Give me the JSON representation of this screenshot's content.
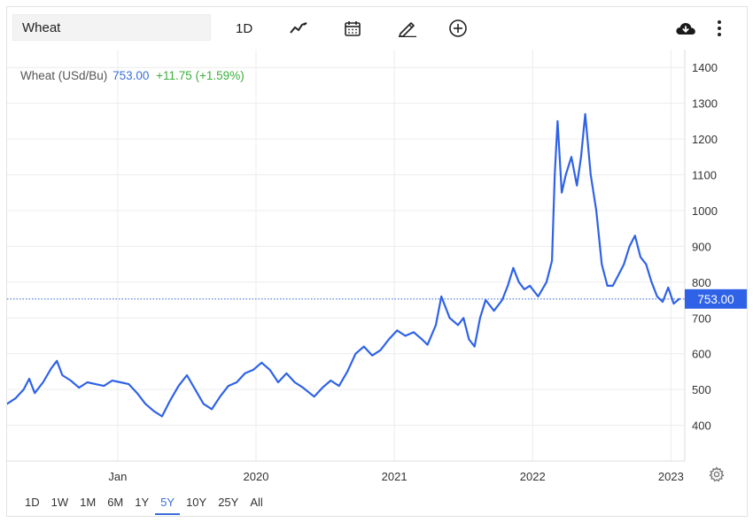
{
  "toolbar": {
    "symbol": "Wheat",
    "interval_label": "1D",
    "icons": [
      "line-chart-icon",
      "calendar-icon",
      "pencil-icon",
      "plus-circle-icon",
      "cloud-download-icon",
      "more-vertical-icon"
    ]
  },
  "legend": {
    "name": "Wheat (USd/Bu)",
    "price": "753.00",
    "change": "+11.75 (+1.59%)"
  },
  "price_tag": "753.00",
  "ranges": {
    "items": [
      "1D",
      "1W",
      "1M",
      "6M",
      "1Y",
      "5Y",
      "10Y",
      "25Y",
      "All"
    ],
    "active": "5Y"
  },
  "colors": {
    "line": "#2f62e6",
    "tag": "#2f62e6",
    "grid": "#ececec",
    "up": "#3bae3b"
  },
  "chart_data": {
    "type": "line",
    "series": [
      {
        "values": [
          [
            2018.2,
            460
          ],
          [
            2018.26,
            475
          ],
          [
            2018.32,
            500
          ],
          [
            2018.36,
            530
          ],
          [
            2018.4,
            490
          ],
          [
            2018.46,
            520
          ],
          [
            2018.52,
            560
          ],
          [
            2018.56,
            580
          ],
          [
            2018.6,
            540
          ],
          [
            2018.66,
            525
          ],
          [
            2018.72,
            505
          ],
          [
            2018.78,
            520
          ],
          [
            2018.84,
            515
          ],
          [
            2018.9,
            510
          ],
          [
            2018.96,
            525
          ],
          [
            2019.02,
            520
          ],
          [
            2019.08,
            515
          ],
          [
            2019.14,
            490
          ],
          [
            2019.2,
            460
          ],
          [
            2019.26,
            440
          ],
          [
            2019.32,
            425
          ],
          [
            2019.38,
            470
          ],
          [
            2019.44,
            510
          ],
          [
            2019.5,
            540
          ],
          [
            2019.56,
            500
          ],
          [
            2019.62,
            460
          ],
          [
            2019.68,
            445
          ],
          [
            2019.74,
            480
          ],
          [
            2019.8,
            510
          ],
          [
            2019.86,
            520
          ],
          [
            2019.92,
            545
          ],
          [
            2019.98,
            555
          ],
          [
            2020.04,
            575
          ],
          [
            2020.1,
            555
          ],
          [
            2020.16,
            520
          ],
          [
            2020.22,
            545
          ],
          [
            2020.28,
            520
          ],
          [
            2020.34,
            505
          ],
          [
            2020.42,
            480
          ],
          [
            2020.48,
            505
          ],
          [
            2020.54,
            525
          ],
          [
            2020.6,
            510
          ],
          [
            2020.66,
            550
          ],
          [
            2020.72,
            600
          ],
          [
            2020.78,
            620
          ],
          [
            2020.84,
            595
          ],
          [
            2020.9,
            610
          ],
          [
            2020.96,
            640
          ],
          [
            2021.02,
            665
          ],
          [
            2021.08,
            650
          ],
          [
            2021.14,
            660
          ],
          [
            2021.2,
            640
          ],
          [
            2021.24,
            625
          ],
          [
            2021.3,
            680
          ],
          [
            2021.34,
            760
          ],
          [
            2021.4,
            700
          ],
          [
            2021.46,
            680
          ],
          [
            2021.5,
            700
          ],
          [
            2021.54,
            640
          ],
          [
            2021.58,
            620
          ],
          [
            2021.62,
            700
          ],
          [
            2021.66,
            750
          ],
          [
            2021.72,
            720
          ],
          [
            2021.78,
            750
          ],
          [
            2021.82,
            790
          ],
          [
            2021.86,
            840
          ],
          [
            2021.9,
            800
          ],
          [
            2021.94,
            780
          ],
          [
            2021.98,
            790
          ],
          [
            2022.04,
            760
          ],
          [
            2022.1,
            800
          ],
          [
            2022.14,
            860
          ],
          [
            2022.16,
            1100
          ],
          [
            2022.18,
            1250
          ],
          [
            2022.21,
            1050
          ],
          [
            2022.24,
            1100
          ],
          [
            2022.28,
            1150
          ],
          [
            2022.32,
            1070
          ],
          [
            2022.35,
            1150
          ],
          [
            2022.38,
            1270
          ],
          [
            2022.42,
            1100
          ],
          [
            2022.46,
            1000
          ],
          [
            2022.5,
            850
          ],
          [
            2022.54,
            790
          ],
          [
            2022.58,
            790
          ],
          [
            2022.62,
            820
          ],
          [
            2022.66,
            850
          ],
          [
            2022.7,
            900
          ],
          [
            2022.74,
            930
          ],
          [
            2022.78,
            870
          ],
          [
            2022.82,
            850
          ],
          [
            2022.86,
            800
          ],
          [
            2022.9,
            760
          ],
          [
            2022.94,
            745
          ],
          [
            2022.98,
            785
          ],
          [
            2023.02,
            740
          ],
          [
            2023.06,
            753
          ]
        ]
      }
    ],
    "x_ticks": [
      {
        "value": 2019.0,
        "label": "Jan"
      },
      {
        "value": 2020.0,
        "label": "2020"
      },
      {
        "value": 2021.0,
        "label": "2021"
      },
      {
        "value": 2022.0,
        "label": "2022"
      },
      {
        "value": 2023.0,
        "label": "2023"
      }
    ],
    "y_ticks": [
      400,
      500,
      600,
      700,
      800,
      900,
      1000,
      1100,
      1200,
      1300,
      1400
    ],
    "xlim": [
      2018.2,
      2023.1
    ],
    "ylim": [
      300,
      1450
    ],
    "grid": true,
    "last_value": 753.0
  }
}
